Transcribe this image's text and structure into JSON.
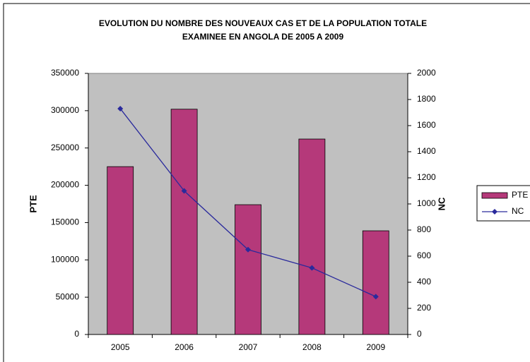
{
  "chart_data": {
    "type": "bar_line",
    "title": [
      "EVOLUTION DU NOMBRE DES NOUVEAUX CAS ET DE LA POPULATION TOTALE",
      "EXAMINEE EN ANGOLA DE 2005 A 2009"
    ],
    "y_label": "PTE",
    "y2_label": "NC",
    "categories": [
      "2005",
      "2006",
      "2007",
      "2008",
      "2009"
    ],
    "series": [
      {
        "name": "PTE",
        "type": "bar",
        "color": "#b5397a",
        "values": [
          225000,
          302000,
          174000,
          262000,
          139000
        ]
      },
      {
        "name": "NC",
        "type": "line",
        "axis": "y2",
        "color": "#2a2a9c",
        "values": [
          1730,
          1100,
          650,
          510,
          290
        ]
      }
    ],
    "ylim": [
      0,
      350000
    ],
    "yticks": [
      0,
      50000,
      100000,
      150000,
      200000,
      250000,
      300000,
      350000
    ],
    "y2lim": [
      0,
      2000
    ],
    "y2ticks": [
      0,
      200,
      400,
      600,
      800,
      1000,
      1200,
      1400,
      1600,
      1800,
      2000
    ],
    "grid": false,
    "legend": "right"
  }
}
